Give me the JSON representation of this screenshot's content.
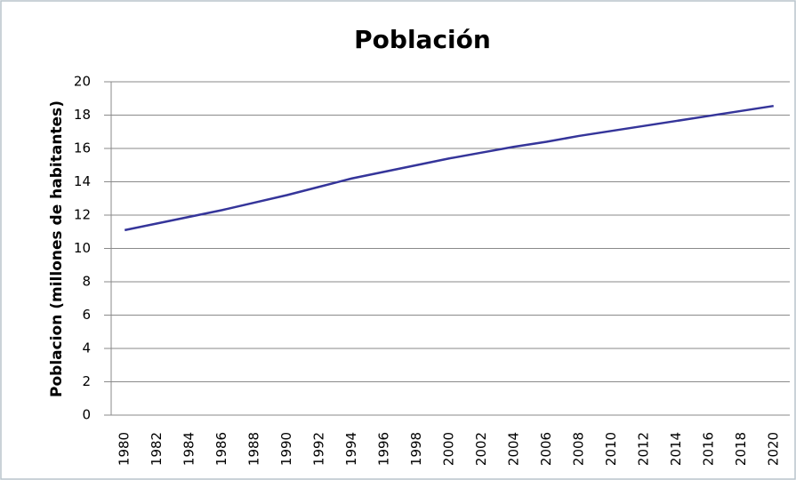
{
  "chart_data": {
    "type": "line",
    "title": "Población",
    "y_label": "Poblacion (millones de habitantes)",
    "categories": [
      "1980",
      "1982",
      "1984",
      "1986",
      "1988",
      "1990",
      "1992",
      "1994",
      "1996",
      "1998",
      "2000",
      "2002",
      "2004",
      "2006",
      "2008",
      "2010",
      "2012",
      "2014",
      "2016",
      "2018",
      "2020"
    ],
    "values": [
      11.1,
      11.5,
      11.9,
      12.3,
      12.75,
      13.2,
      13.7,
      14.2,
      14.6,
      15.0,
      15.4,
      15.75,
      16.1,
      16.4,
      16.75,
      17.05,
      17.35,
      17.65,
      17.95,
      18.25,
      18.55
    ],
    "color": "#35359a",
    "ylim": [
      0,
      20
    ],
    "yticks": [
      0,
      2,
      4,
      6,
      8,
      10,
      12,
      14,
      16,
      18,
      20
    ],
    "grid": true
  }
}
